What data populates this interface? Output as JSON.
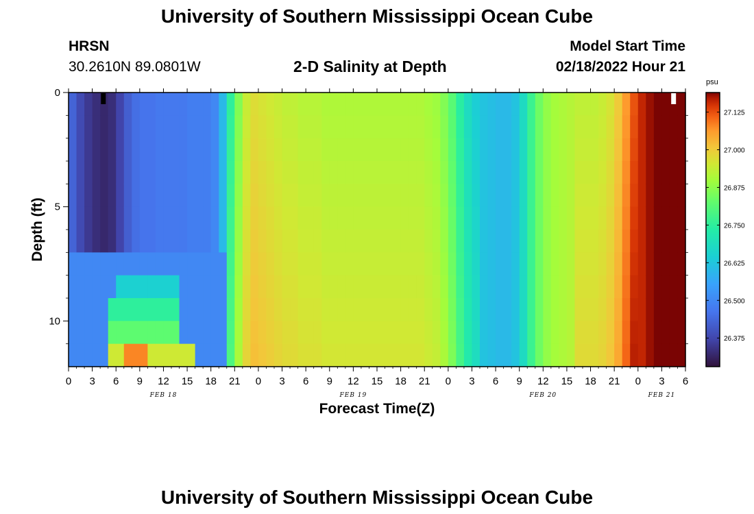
{
  "title": "University of Southern Mississippi Ocean Cube",
  "footer_title": "University of Southern Mississippi Ocean Cube",
  "station": {
    "name": "HRSN",
    "coords": "30.2610N  89.0801W"
  },
  "model": {
    "label": "Model Start Time",
    "time": "02/18/2022 Hour 21"
  },
  "chart_data": {
    "type": "heatmap",
    "title": "2-D Salinity at Depth",
    "xlabel": "Forecast Time(Z)",
    "ylabel": "Depth (ft)",
    "x_tick_labels": [
      "0",
      "3",
      "6",
      "9",
      "12",
      "15",
      "18",
      "21",
      "0",
      "3",
      "6",
      "9",
      "12",
      "15",
      "18",
      "21",
      "0",
      "3",
      "6",
      "9",
      "12",
      "15",
      "18",
      "21",
      "0",
      "3",
      "6"
    ],
    "x_range_hours": [
      0,
      78
    ],
    "date_labels": [
      {
        "text": "FEB 18",
        "hour": 12
      },
      {
        "text": "FEB 19",
        "hour": 36
      },
      {
        "text": "FEB 20",
        "hour": 60
      },
      {
        "text": "FEB 21",
        "hour": 75
      }
    ],
    "y_ticks": [
      0,
      5,
      10
    ],
    "y_tick_labels": [
      "0",
      "5",
      "10"
    ],
    "y_range_ft": [
      0,
      12
    ],
    "depth_layers_ft": [
      0,
      1,
      2,
      3,
      4,
      5,
      6,
      7,
      8,
      9,
      10,
      11
    ],
    "markers": [
      {
        "hour": 4.4,
        "color": "#000000"
      },
      {
        "hour": 76.5,
        "color": "#ffffff"
      }
    ],
    "colorbar": {
      "unit": "psu",
      "min": 26.28,
      "max": 27.19,
      "ticks": [
        "26.375",
        "26.500",
        "26.625",
        "26.750",
        "26.875",
        "27.000",
        "27.125"
      ]
    },
    "salinity_profile": {
      "note": "Surface salinity (psu) per hour, hours 0-78; deeper layers deviate as listed below",
      "surface_hourly": [
        26.43,
        26.38,
        26.35,
        26.33,
        26.32,
        26.33,
        26.37,
        26.42,
        26.45,
        26.46,
        26.46,
        26.47,
        26.47,
        26.47,
        26.47,
        26.48,
        26.48,
        26.48,
        26.5,
        26.6,
        26.75,
        26.86,
        26.94,
        26.97,
        26.96,
        26.95,
        26.94,
        26.93,
        26.93,
        26.92,
        26.92,
        26.92,
        26.91,
        26.91,
        26.91,
        26.91,
        26.91,
        26.91,
        26.91,
        26.91,
        26.91,
        26.91,
        26.91,
        26.91,
        26.91,
        26.9,
        26.89,
        26.86,
        26.81,
        26.74,
        26.68,
        26.64,
        26.62,
        26.61,
        26.6,
        26.6,
        26.62,
        26.68,
        26.77,
        26.84,
        26.88,
        26.9,
        26.91,
        26.92,
        26.93,
        26.93,
        26.93,
        26.94,
        26.96,
        27.0,
        27.06,
        27.12,
        27.16,
        27.18,
        27.19,
        27.19,
        27.19,
        27.19,
        27.19
      ],
      "deep_layer_notes": [
        {
          "depth_ft": 7,
          "hours": [
            0,
            20
          ],
          "salinity": 26.5
        },
        {
          "depth_ft": 8,
          "hours": [
            6,
            14
          ],
          "salinity": 26.65
        },
        {
          "depth_ft": 9,
          "hours": [
            5,
            14
          ],
          "salinity": 26.75
        },
        {
          "depth_ft": 10,
          "hours": [
            5,
            14
          ],
          "salinity": 26.82
        },
        {
          "depth_ft": 11,
          "hours": [
            5,
            16
          ],
          "salinity": 26.95
        },
        {
          "depth_ft": 11.5,
          "hours": [
            7,
            10
          ],
          "salinity": 27.08
        }
      ]
    }
  }
}
